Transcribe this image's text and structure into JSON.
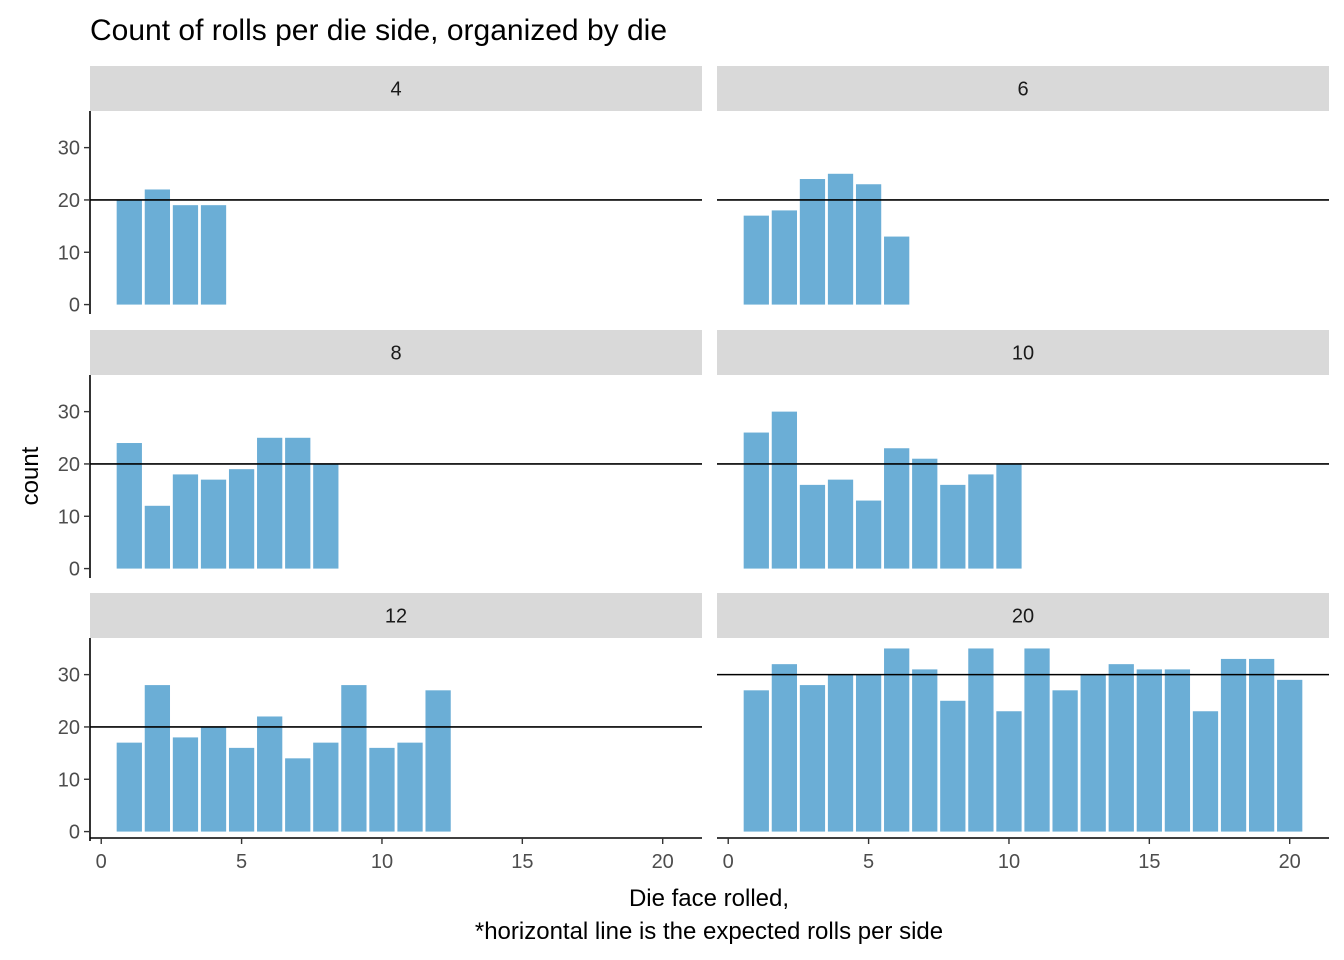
{
  "chart_data": {
    "type": "bar",
    "title": "Count of rolls per die side, organized by die",
    "xlabel_lines": [
      "Die face rolled,",
      "*horizontal line is the expected rolls per side"
    ],
    "ylabel": "count",
    "xlim": [
      -0.4,
      21.4
    ],
    "ylim": [
      -1.8,
      37
    ],
    "xticks": [
      0,
      5,
      10,
      15,
      20
    ],
    "yticks": [
      0,
      10,
      20,
      30
    ],
    "bar_color": "#6baed6",
    "grid": false,
    "legend": "none",
    "panels": [
      {
        "label": "4",
        "expected": 20,
        "values": [
          20,
          22,
          19,
          19
        ]
      },
      {
        "label": "6",
        "expected": 20,
        "values": [
          17,
          18,
          24,
          25,
          23,
          13
        ]
      },
      {
        "label": "8",
        "expected": 20,
        "values": [
          24,
          12,
          18,
          17,
          19,
          25,
          25,
          20
        ]
      },
      {
        "label": "10",
        "expected": 20,
        "values": [
          26,
          30,
          16,
          17,
          13,
          23,
          21,
          16,
          18,
          20
        ]
      },
      {
        "label": "12",
        "expected": 20,
        "values": [
          17,
          28,
          18,
          20,
          16,
          22,
          14,
          17,
          28,
          16,
          17,
          27
        ]
      },
      {
        "label": "20",
        "expected": 30,
        "values": [
          27,
          32,
          28,
          30,
          30,
          35,
          31,
          25,
          35,
          23,
          35,
          27,
          30,
          32,
          31,
          31,
          23,
          33,
          33,
          29
        ]
      }
    ]
  }
}
